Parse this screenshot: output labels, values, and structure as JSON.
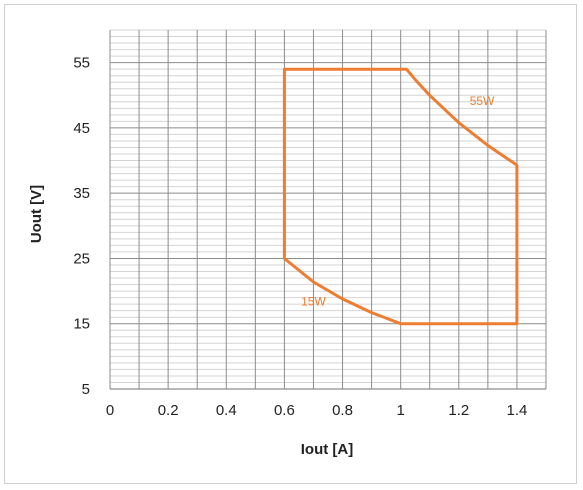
{
  "chart_data": {
    "type": "line",
    "title": "",
    "xlabel": "Iout [A]",
    "ylabel": "Uout [V]",
    "xlim": [
      0,
      1.5
    ],
    "ylim": [
      5,
      60
    ],
    "x_ticks": [
      0,
      0.2,
      0.4,
      0.6,
      0.8,
      1,
      1.2,
      1.4
    ],
    "x_tick_labels": [
      "0",
      "0.2",
      "0.4",
      "0.6",
      "0.8",
      "1",
      "1.2",
      "1.4"
    ],
    "y_ticks": [
      5,
      15,
      25,
      35,
      45,
      55
    ],
    "y_tick_labels": [
      "5",
      "15",
      "25",
      "35",
      "45",
      "55"
    ],
    "grid": true,
    "legend": "none",
    "series": [
      {
        "color": "#ed7d31",
        "x": [
          0.6,
          1.02,
          1.05,
          1.1,
          1.2,
          1.3,
          1.4,
          1.4,
          1.0,
          0.9,
          0.8,
          0.7,
          0.6,
          0.6
        ],
        "y": [
          54,
          54,
          52.4,
          50,
          45.8,
          42.3,
          39.3,
          15,
          15,
          16.7,
          18.8,
          21.4,
          25,
          54
        ]
      }
    ],
    "annotations": [
      {
        "text": "55W",
        "x": 1.28,
        "y": 48.5
      },
      {
        "text": "15W",
        "x": 0.7,
        "y": 17.8
      }
    ]
  }
}
